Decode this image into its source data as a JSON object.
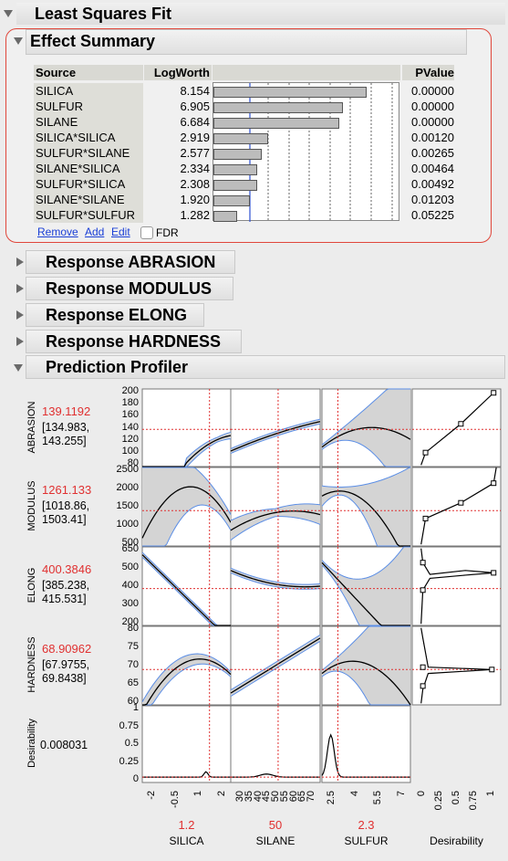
{
  "least_squares": {
    "title": "Least Squares Fit"
  },
  "effect_summary": {
    "title": "Effect Summary",
    "columns": {
      "source": "Source",
      "logworth": "LogWorth",
      "pvalue": "PValue"
    },
    "rows": [
      {
        "source": "SILICA",
        "logworth": "8.154",
        "pvalue": "0.00000",
        "lw": 8.154
      },
      {
        "source": "SULFUR",
        "logworth": "6.905",
        "pvalue": "0.00000",
        "lw": 6.905
      },
      {
        "source": "SILANE",
        "logworth": "6.684",
        "pvalue": "0.00000",
        "lw": 6.684
      },
      {
        "source": "SILICA*SILICA",
        "logworth": "2.919",
        "pvalue": "0.00120",
        "lw": 2.919
      },
      {
        "source": "SULFUR*SILANE",
        "logworth": "2.577",
        "pvalue": "0.00265",
        "lw": 2.577
      },
      {
        "source": "SILANE*SILICA",
        "logworth": "2.334",
        "pvalue": "0.00464",
        "lw": 2.334
      },
      {
        "source": "SULFUR*SILICA",
        "logworth": "2.308",
        "pvalue": "0.00492",
        "lw": 2.308
      },
      {
        "source": "SILANE*SILANE",
        "logworth": "1.920",
        "pvalue": "0.01203",
        "lw": 1.92
      },
      {
        "source": "SULFUR*SULFUR",
        "logworth": "1.282",
        "pvalue": "0.05225",
        "lw": 1.282
      }
    ],
    "actions": {
      "remove": "Remove",
      "add": "Add",
      "edit": "Edit",
      "fdr": "FDR"
    }
  },
  "responses": [
    {
      "title": "Response ABRASION"
    },
    {
      "title": "Response MODULUS"
    },
    {
      "title": "Response ELONG"
    },
    {
      "title": "Response HARDNESS"
    }
  ],
  "profiler": {
    "title": "Prediction Profiler",
    "rows": [
      {
        "name": "ABRASION",
        "value": "139.1192",
        "ci1": "[134.983,",
        "ci2": "143.255]",
        "ticks": [
          "200",
          "180",
          "160",
          "140",
          "120",
          "100",
          "80"
        ]
      },
      {
        "name": "MODULUS",
        "value": "1261.133",
        "ci1": "[1018.86,",
        "ci2": "1503.41]",
        "ticks": [
          "2500",
          "2000",
          "1500",
          "1000",
          "500"
        ]
      },
      {
        "name": "ELONG",
        "value": "400.3846",
        "ci1": "[385.238,",
        "ci2": "415.531]",
        "ticks": [
          "650",
          "500",
          "400",
          "300",
          "200"
        ]
      },
      {
        "name": "HARDNESS",
        "value": "68.90962",
        "ci1": "[67.9755,",
        "ci2": "69.8438]",
        "ticks": [
          "80",
          "75",
          "70",
          "65",
          "60"
        ]
      },
      {
        "name": "Desirability",
        "value": "0.008031",
        "ticks": [
          "1",
          "0.75",
          "0.5",
          "0.25",
          "0"
        ]
      }
    ],
    "factors": [
      {
        "name": "SILICA",
        "value": "1.2",
        "ticks": [
          "-2",
          "-0.5",
          "1",
          "2"
        ]
      },
      {
        "name": "SILANE",
        "value": "50",
        "ticks": [
          "30",
          "35",
          "40",
          "45",
          "50",
          "55",
          "60",
          "65",
          "70"
        ]
      },
      {
        "name": "SULFUR",
        "value": "2.3",
        "ticks": [
          "2.5",
          "4",
          "5.5",
          "7"
        ]
      }
    ],
    "desirability_axis": {
      "name": "Desirability",
      "ticks": [
        "0",
        "0.25",
        "0.5",
        "0.75",
        "1"
      ]
    }
  },
  "colors": {
    "accent_red": "#e03030",
    "link_blue": "#1a3fd6",
    "ci_blue": "#5b8ee6",
    "frame_red": "#e0463a"
  }
}
